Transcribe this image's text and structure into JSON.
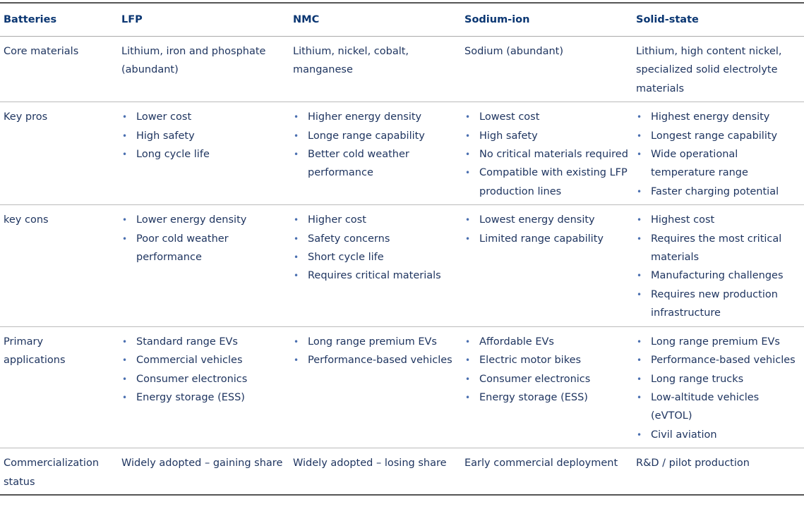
{
  "header": [
    "Batteries",
    "LFP",
    "NMC",
    "Sodium-ion",
    "Solid-state"
  ],
  "rows": [
    {
      "label": "Core materials",
      "cells": [
        "Lithium, iron and phosphate (abundant)",
        "Lithium, nickel, cobalt, manganese",
        "Sodium (abundant)",
        "Lithium, high content nickel, specialized solid electrolyte materials"
      ]
    },
    {
      "label": "Key pros",
      "cells": [
        [
          "Lower cost",
          "High safety",
          "Long cycle life"
        ],
        [
          "Higher energy density",
          "Longe range capability",
          "Better cold weather performance"
        ],
        [
          "Lowest cost",
          "High safety",
          "No critical materials required",
          "Compatible with existing LFP production lines"
        ],
        [
          "Highest energy density",
          "Longest range capability",
          "Wide operational temperature range",
          "Faster charging potential"
        ]
      ]
    },
    {
      "label": "key cons",
      "cells": [
        [
          "Lower energy density",
          "Poor cold weather performance"
        ],
        [
          "Higher cost",
          "Safety concerns",
          "Short cycle life",
          "Requires critical materials"
        ],
        [
          "Lowest energy density",
          "Limited range capability"
        ],
        [
          "Highest cost",
          "Requires the most critical materials",
          "Manufacturing challenges",
          "Requires new production infrastructure"
        ]
      ]
    },
    {
      "label": "Primary applications",
      "cells": [
        [
          "Standard range EVs",
          "Commercial vehicles",
          "Consumer electronics",
          "Energy storage (ESS)"
        ],
        [
          "Long range premium EVs",
          "Performance-based vehicles"
        ],
        [
          "Affordable EVs",
          "Electric motor bikes",
          "Consumer electronics",
          "Energy storage (ESS)"
        ],
        [
          "Long range premium EVs",
          "Performance-based vehicles",
          "Long range trucks",
          "Low-altitude vehicles (eVTOL)",
          "Civil aviation"
        ]
      ]
    },
    {
      "label": "Commercialization status",
      "cells": [
        "Widely adopted – gaining share",
        "Widely adopted – losing share",
        "Early commercial deployment",
        "R&D / pilot production"
      ]
    }
  ]
}
